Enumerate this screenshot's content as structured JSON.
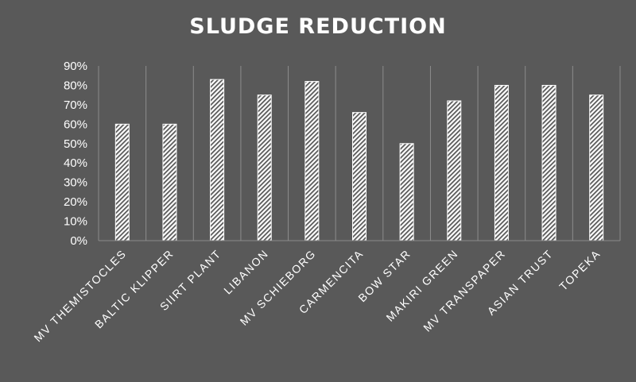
{
  "chart_data": {
    "type": "bar",
    "title": "SLUDGE REDUCTION",
    "xlabel": "",
    "ylabel": "",
    "categories": [
      "MV THEMISTOCLES",
      "BALTIC KLIPPER",
      "SIIRT PLANT",
      "LIBANON",
      "MV SCHIEBORG",
      "CARMENCITA",
      "BOW STAR",
      "MAKIRI GREEN",
      "MV TRANSPAPER",
      "ASIAN TRUST",
      "TOPEKA"
    ],
    "values": [
      60,
      60,
      83,
      75,
      82,
      66,
      50,
      72,
      80,
      80,
      75
    ],
    "ylim": [
      0,
      90
    ],
    "y_ticks": [
      "0%",
      "10%",
      "20%",
      "30%",
      "40%",
      "50%",
      "60%",
      "70%",
      "80%",
      "90%"
    ],
    "grid": "vertical-category-separators",
    "legend": "none",
    "colors": {
      "background": "#595959",
      "bar_fill": "#ffffff",
      "bar_hatch": "#595959",
      "grid": "#8c8c8c",
      "text": "#ffffff"
    }
  }
}
